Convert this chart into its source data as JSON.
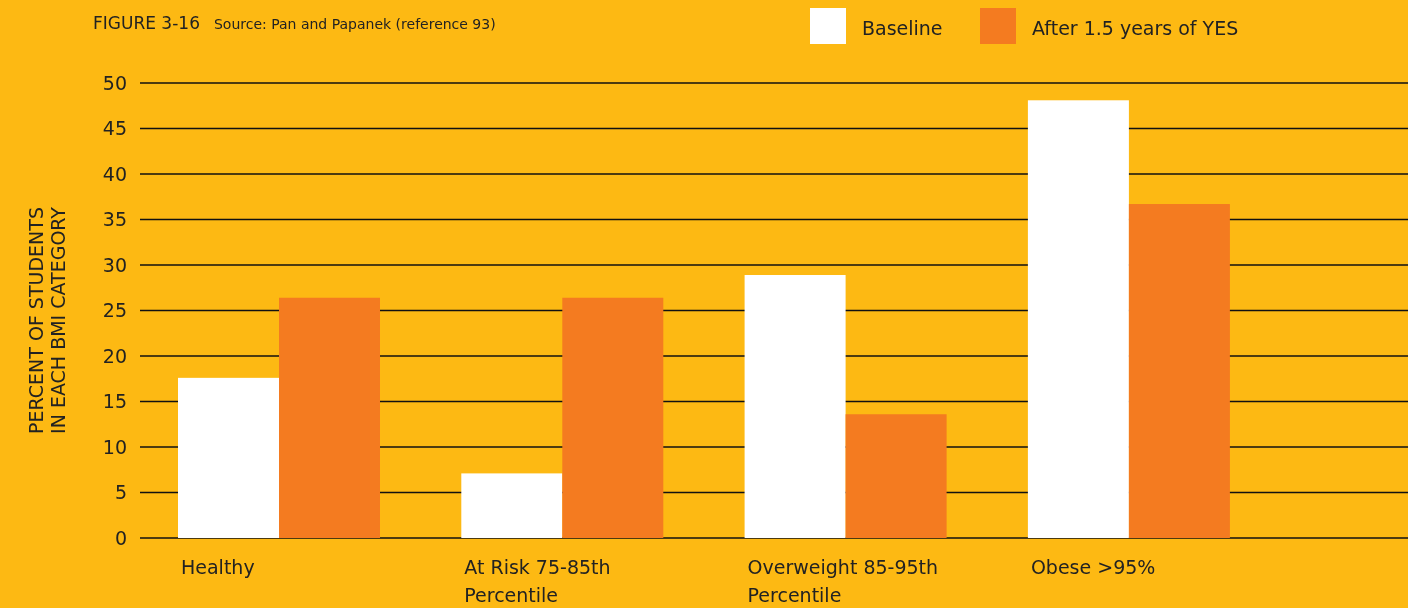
{
  "chart_data": {
    "type": "bar",
    "title": "FIGURE 3-16",
    "subtitle": "Source: Pan and Papanek (reference 93)",
    "ylabel": "PERCENT OF STUDENTS\nIN EACH BMI CATEGORY",
    "categories": [
      "Healthy",
      "At Risk 75-85th Percentile",
      "Overweight 85-95th Percentile",
      "Obese >95%"
    ],
    "series": [
      {
        "name": "Baseline",
        "color": "#ffffff",
        "values": [
          17.6,
          7.1,
          28.9,
          48.1
        ]
      },
      {
        "name": "After 1.5 years of YES",
        "color": "#f47b20",
        "values": [
          26.4,
          26.4,
          13.6,
          36.7
        ]
      }
    ],
    "ylim": [
      0,
      50
    ],
    "yticks": [
      0,
      5,
      10,
      15,
      20,
      25,
      30,
      35,
      40,
      45,
      50
    ],
    "grid": "y",
    "legend": "top right"
  }
}
